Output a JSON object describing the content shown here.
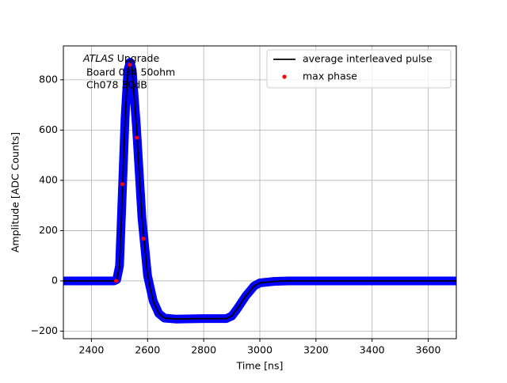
{
  "chart_data": {
    "type": "line",
    "xlabel": "Time [ns]",
    "ylabel": "Amplitude [ADC Counts]",
    "annotation": {
      "italic": "ATLAS",
      "rest": " Upgrade",
      "lines": [
        " Board 034 50ohm",
        " Ch078 30dB"
      ]
    },
    "xlim": [
      2300,
      3700
    ],
    "ylim": [
      -230,
      935
    ],
    "xticks": [
      2400,
      2600,
      2800,
      3000,
      3200,
      3400,
      3600
    ],
    "yticks": [
      {
        "value": -200,
        "label": "−200"
      },
      0,
      200,
      400,
      600,
      800
    ],
    "grid": true,
    "legend": "upper right",
    "band": {
      "color": "#0000ff",
      "x": [
        2300,
        2480,
        2490,
        2500,
        2510,
        2520,
        2530,
        2538,
        2545,
        2560,
        2580,
        2600,
        2620,
        2640,
        2660,
        2700,
        2800,
        2880,
        2900,
        2920,
        2950,
        2980,
        3000,
        3050,
        3100,
        3700
      ],
      "values": [
        0,
        0,
        5,
        60,
        350,
        650,
        840,
        870,
        840,
        620,
        250,
        20,
        -80,
        -130,
        -148,
        -152,
        -150,
        -150,
        -140,
        -110,
        -60,
        -20,
        -8,
        -2,
        0,
        0
      ]
    },
    "series": [
      {
        "name": "average interleaved pulse",
        "color": "#000000",
        "style": "line",
        "x": [
          2300,
          2480,
          2490,
          2500,
          2510,
          2520,
          2530,
          2538,
          2545,
          2560,
          2580,
          2600,
          2620,
          2640,
          2660,
          2700,
          2800,
          2880,
          2900,
          2920,
          2950,
          2980,
          3000,
          3050,
          3100,
          3700
        ],
        "values": [
          0,
          0,
          5,
          60,
          350,
          650,
          840,
          870,
          840,
          620,
          250,
          20,
          -80,
          -130,
          -148,
          -152,
          -150,
          -150,
          -140,
          -110,
          -60,
          -20,
          -8,
          -2,
          0,
          0
        ]
      },
      {
        "name": "max phase",
        "color": "#ff0000",
        "style": "marker",
        "x": [
          2488,
          2510,
          2537,
          2562,
          2585
        ],
        "values": [
          0,
          385,
          860,
          570,
          168
        ]
      }
    ]
  }
}
